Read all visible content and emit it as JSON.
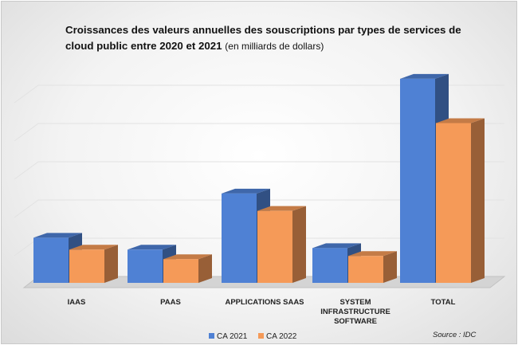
{
  "title_main": "Croissances des valeurs annuelles des souscriptions par types de services de cloud public entre 2020 et 2021",
  "title_sub": "(en milliards de dollars)",
  "source": "Source : IDC",
  "colors": {
    "ca2021": "#4f81d4",
    "ca2022": "#f59a58"
  },
  "chart_data": {
    "type": "bar",
    "title": "Croissances des valeurs annuelles des souscriptions par types de services de cloud public entre 2020 et 2021 (en milliards de dollars)",
    "categories": [
      "IAAS",
      "PAAS",
      "APPLICATIONS SAAS",
      "SYSTEM INFRASTRUCTURE SOFTWARE",
      "TOTAL"
    ],
    "category_lines": [
      [
        "IAAS"
      ],
      [
        "PAAS"
      ],
      [
        "APPLICATIONS SAAS"
      ],
      [
        "SYSTEM",
        "INFRASTRUCTURE",
        "SOFTWARE"
      ],
      [
        "TOTAL"
      ]
    ],
    "series": [
      {
        "name": "CA 2021",
        "values": [
          57,
          42,
          113,
          44,
          258
        ]
      },
      {
        "name": "CA 2022",
        "values": [
          42,
          30,
          91,
          34,
          202
        ]
      }
    ],
    "ylim": [
      0,
      270
    ],
    "legend": "bottom",
    "grid": true,
    "style": "3d"
  }
}
